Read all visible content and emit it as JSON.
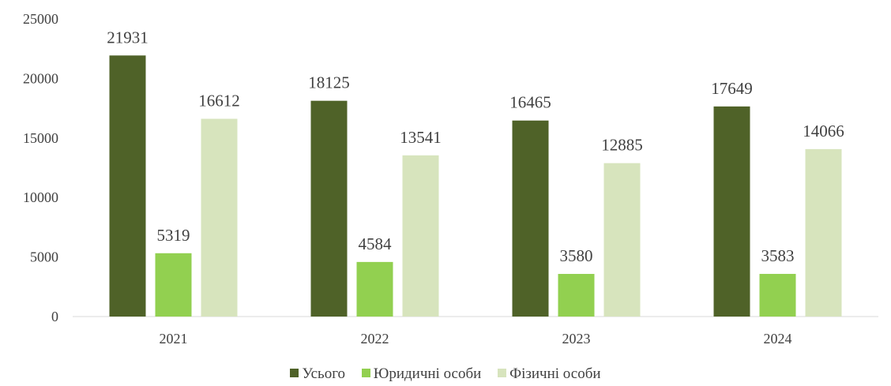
{
  "chart_data": {
    "type": "bar",
    "categories": [
      "2021",
      "2022",
      "2023",
      "2024"
    ],
    "series": [
      {
        "name": "Усього",
        "values": [
          21931,
          18125,
          16465,
          17649
        ],
        "color": "#4f6228"
      },
      {
        "name": "Юридичні особи",
        "values": [
          5319,
          4584,
          3580,
          3583
        ],
        "color": "#92d050"
      },
      {
        "name": "Фізичні особи",
        "values": [
          16612,
          13541,
          12885,
          14066
        ],
        "color": "#d7e4bd"
      }
    ],
    "yticks": [
      "0",
      "5000",
      "10000",
      "15000",
      "20000",
      "25000"
    ],
    "ylim": [
      0,
      25000
    ],
    "grid": false,
    "legend_position": "bottom"
  }
}
